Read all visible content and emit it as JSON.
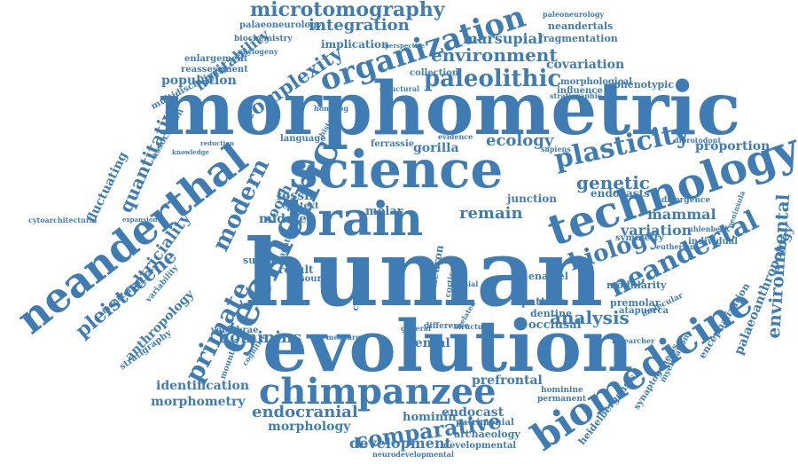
{
  "colors": {
    "word": "#3f7cb4",
    "background": "#ffffff"
  },
  "words": [
    "morphometric",
    "human",
    "evolution",
    "science",
    "brain",
    "technology",
    "neanderthal",
    "geometric",
    "chimpanzee",
    "biomedicine",
    "organization",
    "neandertal",
    "plasticity",
    "primate",
    "modern",
    "biology",
    "paleolithic",
    "environment",
    "microtomography",
    "quantitative",
    "pleistocene",
    "altriciality",
    "environmental",
    "comparative",
    "analysis",
    "endocranial",
    "hominins",
    "integration",
    "complexity",
    "heritability",
    "development",
    "identification",
    "morphometry",
    "genetic",
    "mammal",
    "variation",
    "remain",
    "ecology",
    "fossil",
    "dental",
    "morphology",
    "tooth",
    "palaeoanthropology",
    "anthropology",
    "fluctuating",
    "population",
    "encephalization",
    "hominin",
    "endocast",
    "prefrontal",
    "occlusal",
    "dentine",
    "pattern",
    "premolar",
    "marsupial",
    "covariation",
    "fragmentation",
    "neandertals",
    "palaeoneurology",
    "paleoneurology",
    "biochemistry",
    "phylogeny",
    "enlargement",
    "reassessment",
    "multidisciplinary",
    "association",
    "middle",
    "molar",
    "gorilla",
    "context",
    "result",
    "source",
    "vertebrae",
    "measure",
    "endocasts",
    "proportion",
    "diprotodont",
    "divergence",
    "modularity",
    "heidelbergensis",
    "synaptogenesis",
    "myelination",
    "archaeology",
    "developmental",
    "neurodevelopmental",
    "patrimonial",
    "stratigraphy",
    "monsterian",
    "variability",
    "cytoarchitectural",
    "implication",
    "morphological",
    "phenotypic",
    "influence",
    "collection",
    "junction",
    "enamel",
    "symmetry",
    "individual",
    "molecular",
    "atapuerca",
    "eutherian",
    "uhlenbeck",
    "peninsula",
    "sapiens",
    "ferrassie",
    "language",
    "history",
    "homolog",
    "knowledge",
    "reduction",
    "expansion",
    "cortical",
    "neuron",
    "cervical",
    "surface",
    "anatomy",
    "stratigraphic",
    "perspective",
    "evidence",
    "cranial",
    "hominine",
    "permanent",
    "researcher",
    "mountain",
    "cognitive",
    "general",
    "difference",
    "structure",
    "structural",
    "related",
    "difference"
  ]
}
